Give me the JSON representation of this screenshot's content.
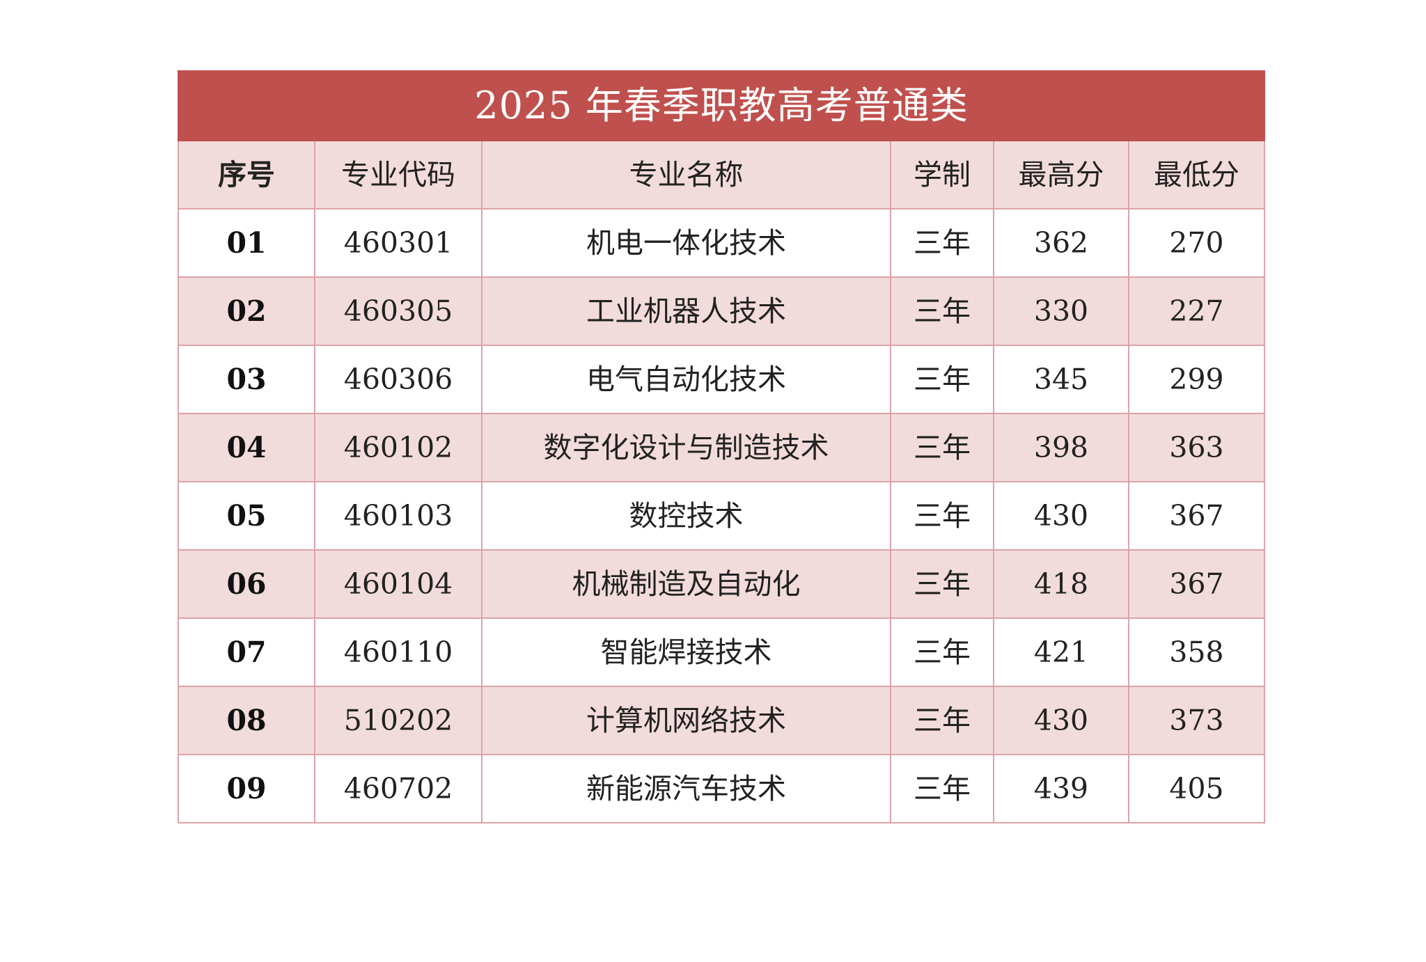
{
  "title": "2025 年春季职教高考普通类",
  "headers": {
    "seq": "序号",
    "code": "专业代码",
    "name": "专业名称",
    "duration": "学制",
    "max": "最高分",
    "min": "最低分"
  },
  "rows": [
    {
      "seq": "01",
      "code": "460301",
      "name": "机电一体化技术",
      "duration": "三年",
      "max": "362",
      "min": "270"
    },
    {
      "seq": "02",
      "code": "460305",
      "name": "工业机器人技术",
      "duration": "三年",
      "max": "330",
      "min": "227"
    },
    {
      "seq": "03",
      "code": "460306",
      "name": "电气自动化技术",
      "duration": "三年",
      "max": "345",
      "min": "299"
    },
    {
      "seq": "04",
      "code": "460102",
      "name": "数字化设计与制造技术",
      "duration": "三年",
      "max": "398",
      "min": "363"
    },
    {
      "seq": "05",
      "code": "460103",
      "name": "数控技术",
      "duration": "三年",
      "max": "430",
      "min": "367"
    },
    {
      "seq": "06",
      "code": "460104",
      "name": "机械制造及自动化",
      "duration": "三年",
      "max": "418",
      "min": "367"
    },
    {
      "seq": "07",
      "code": "460110",
      "name": "智能焊接技术",
      "duration": "三年",
      "max": "421",
      "min": "358"
    },
    {
      "seq": "08",
      "code": "510202",
      "name": "计算机网络技术",
      "duration": "三年",
      "max": "430",
      "min": "373"
    },
    {
      "seq": "09",
      "code": "460702",
      "name": "新能源汽车技术",
      "duration": "三年",
      "max": "439",
      "min": "405"
    }
  ],
  "colors": {
    "title_bg": "#c0504d",
    "shade_bg": "#f2dcdb",
    "border": "#dba3a8"
  }
}
